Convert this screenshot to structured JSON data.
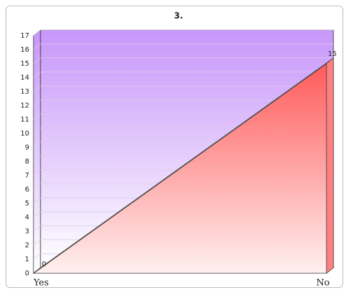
{
  "chart_data": {
    "type": "area",
    "title": "3.",
    "categories": [
      "Yes",
      "No"
    ],
    "values": [
      0,
      15
    ],
    "color": "#ff5a5a",
    "wall_color": "#c896fa",
    "ylim": [
      0,
      17
    ],
    "yticks": [
      0,
      1,
      2,
      3,
      4,
      5,
      6,
      7,
      8,
      9,
      10,
      11,
      12,
      13,
      14,
      15,
      16,
      17
    ],
    "grid": true
  }
}
